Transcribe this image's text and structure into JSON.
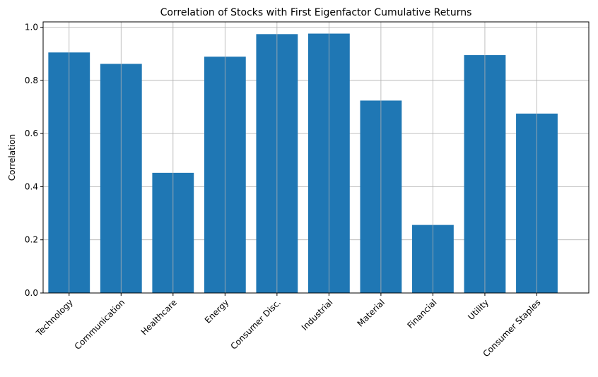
{
  "chart_data": {
    "type": "bar",
    "title": "Correlation of Stocks with First Eigenfactor Cumulative Returns",
    "xlabel": "",
    "ylabel": "Correlation",
    "categories": [
      "Technology",
      "Communication",
      "Healthcare",
      "Energy",
      "Consumer Disc.",
      "Industrial",
      "Material",
      "Financial",
      "Utility",
      "Consumer Staples"
    ],
    "values": [
      0.905,
      0.862,
      0.452,
      0.889,
      0.974,
      0.976,
      0.724,
      0.256,
      0.895,
      0.675
    ],
    "ylim": [
      0,
      1.02
    ],
    "yticks": [
      0.0,
      0.2,
      0.4,
      0.6,
      0.8,
      1.0
    ],
    "ytick_labels": [
      "0.0",
      "0.2",
      "0.4",
      "0.6",
      "0.8",
      "1.0"
    ],
    "grid": true,
    "bar_color": "#1f77b4"
  }
}
